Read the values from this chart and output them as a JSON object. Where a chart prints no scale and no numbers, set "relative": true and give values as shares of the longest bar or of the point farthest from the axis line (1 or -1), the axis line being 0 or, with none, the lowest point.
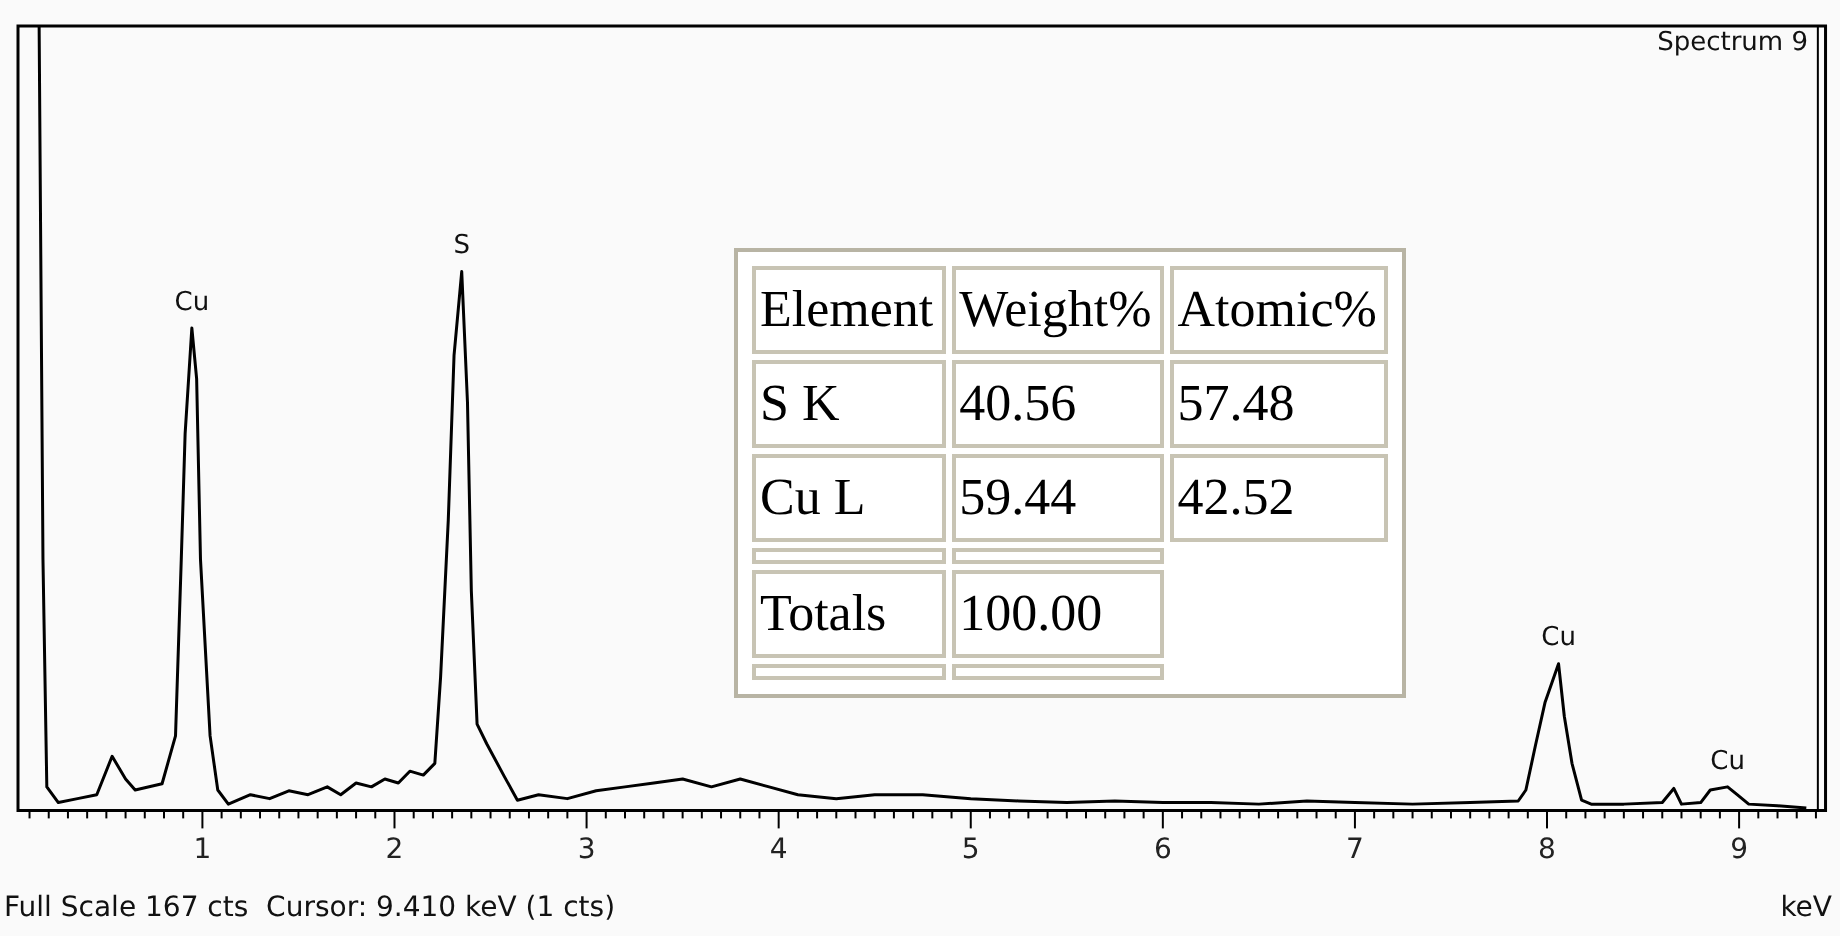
{
  "chart_data": {
    "type": "line",
    "relative": true,
    "xlabel": "keV",
    "xlim": [
      0.04,
      9.45
    ],
    "xticks": [
      {
        "value": 0.1,
        "label": null
      },
      {
        "value": 0.2,
        "label": null
      },
      {
        "value": 0.3,
        "label": null
      },
      {
        "value": 0.4,
        "label": null
      },
      {
        "value": 0.5,
        "label": null
      },
      {
        "value": 0.6,
        "label": null
      },
      {
        "value": 0.7,
        "label": null
      },
      {
        "value": 0.8,
        "label": null
      },
      {
        "value": 0.9,
        "label": null
      },
      1,
      {
        "value": 1.1,
        "label": null
      },
      {
        "value": 1.2,
        "label": null
      },
      {
        "value": 1.3,
        "label": null
      },
      {
        "value": 1.4,
        "label": null
      },
      {
        "value": 1.5,
        "label": null
      },
      {
        "value": 1.6,
        "label": null
      },
      {
        "value": 1.7,
        "label": null
      },
      {
        "value": 1.8,
        "label": null
      },
      {
        "value": 1.9,
        "label": null
      },
      2,
      {
        "value": 2.1,
        "label": null
      },
      {
        "value": 2.2,
        "label": null
      },
      {
        "value": 2.3,
        "label": null
      },
      {
        "value": 2.4,
        "label": null
      },
      {
        "value": 2.5,
        "label": null
      },
      {
        "value": 2.6,
        "label": null
      },
      {
        "value": 2.7,
        "label": null
      },
      {
        "value": 2.8,
        "label": null
      },
      {
        "value": 2.9,
        "label": null
      },
      3,
      {
        "value": 3.1,
        "label": null
      },
      {
        "value": 3.2,
        "label": null
      },
      {
        "value": 3.3,
        "label": null
      },
      {
        "value": 3.4,
        "label": null
      },
      {
        "value": 3.5,
        "label": null
      },
      {
        "value": 3.6,
        "label": null
      },
      {
        "value": 3.7,
        "label": null
      },
      {
        "value": 3.8,
        "label": null
      },
      {
        "value": 3.9,
        "label": null
      },
      4,
      {
        "value": 4.1,
        "label": null
      },
      {
        "value": 4.2,
        "label": null
      },
      {
        "value": 4.3,
        "label": null
      },
      {
        "value": 4.4,
        "label": null
      },
      {
        "value": 4.5,
        "label": null
      },
      {
        "value": 4.6,
        "label": null
      },
      {
        "value": 4.7,
        "label": null
      },
      {
        "value": 4.8,
        "label": null
      },
      {
        "value": 4.9,
        "label": null
      },
      5,
      {
        "value": 5.1,
        "label": null
      },
      {
        "value": 5.2,
        "label": null
      },
      {
        "value": 5.3,
        "label": null
      },
      {
        "value": 5.4,
        "label": null
      },
      {
        "value": 5.5,
        "label": null
      },
      {
        "value": 5.6,
        "label": null
      },
      {
        "value": 5.7,
        "label": null
      },
      {
        "value": 5.8,
        "label": null
      },
      {
        "value": 5.9,
        "label": null
      },
      6,
      {
        "value": 6.1,
        "label": null
      },
      {
        "value": 6.2,
        "label": null
      },
      {
        "value": 6.3,
        "label": null
      },
      {
        "value": 6.4,
        "label": null
      },
      {
        "value": 6.5,
        "label": null
      },
      {
        "value": 6.6,
        "label": null
      },
      {
        "value": 6.7,
        "label": null
      },
      {
        "value": 6.8,
        "label": null
      },
      {
        "value": 6.9,
        "label": null
      },
      7,
      {
        "value": 7.1,
        "label": null
      },
      {
        "value": 7.2,
        "label": null
      },
      {
        "value": 7.3,
        "label": null
      },
      {
        "value": 7.4,
        "label": null
      },
      {
        "value": 7.5,
        "label": null
      },
      {
        "value": 7.6,
        "label": null
      },
      {
        "value": 7.7,
        "label": null
      },
      {
        "value": 7.8,
        "label": null
      },
      {
        "value": 7.9,
        "label": null
      },
      8,
      {
        "value": 8.1,
        "label": null
      },
      {
        "value": 8.2,
        "label": null
      },
      {
        "value": 8.3,
        "label": null
      },
      {
        "value": 8.4,
        "label": null
      },
      {
        "value": 8.5,
        "label": null
      },
      {
        "value": 8.6,
        "label": null
      },
      {
        "value": 8.7,
        "label": null
      },
      {
        "value": 8.8,
        "label": null
      },
      {
        "value": 8.9,
        "label": null
      },
      9,
      {
        "value": 9.1,
        "label": null
      },
      {
        "value": 9.2,
        "label": null
      },
      {
        "value": 9.3,
        "label": null
      },
      {
        "value": 9.4,
        "label": null
      }
    ],
    "x": [
      0.15,
      0.17,
      0.19,
      0.25,
      0.35,
      0.45,
      0.53,
      0.6,
      0.65,
      0.79,
      0.86,
      0.89,
      0.91,
      0.945,
      0.97,
      0.99,
      1.04,
      1.08,
      1.135,
      1.25,
      1.35,
      1.45,
      1.55,
      1.65,
      1.72,
      1.8,
      1.88,
      1.95,
      2.02,
      2.08,
      2.15,
      2.21,
      2.24,
      2.28,
      2.31,
      2.35,
      2.38,
      2.4,
      2.43,
      2.48,
      2.57,
      2.64,
      2.75,
      2.9,
      3.05,
      3.2,
      3.35,
      3.5,
      3.65,
      3.8,
      3.95,
      4.1,
      4.3,
      4.5,
      4.75,
      5.0,
      5.25,
      5.5,
      5.75,
      6.0,
      6.25,
      6.5,
      6.75,
      7.0,
      7.3,
      7.6,
      7.85,
      7.89,
      7.94,
      7.99,
      8.06,
      8.09,
      8.13,
      8.18,
      8.23,
      8.4,
      8.6,
      8.66,
      8.7,
      8.8,
      8.85,
      8.94,
      8.99,
      9.05,
      9.2,
      9.35
    ],
    "values": [
      1,
      0.32,
      0.03,
      0.01,
      0.015,
      0.02,
      0.069,
      0.04,
      0.026,
      0.034,
      0.095,
      0.32,
      0.48,
      0.615,
      0.55,
      0.32,
      0.095,
      0.026,
      0.008,
      0.02,
      0.015,
      0.025,
      0.02,
      0.03,
      0.02,
      0.035,
      0.03,
      0.04,
      0.035,
      0.05,
      0.045,
      0.06,
      0.17,
      0.37,
      0.58,
      0.687,
      0.52,
      0.28,
      0.11,
      0.085,
      0.044,
      0.013,
      0.02,
      0.015,
      0.025,
      0.03,
      0.035,
      0.04,
      0.03,
      0.04,
      0.03,
      0.02,
      0.015,
      0.02,
      0.02,
      0.015,
      0.012,
      0.01,
      0.012,
      0.01,
      0.01,
      0.008,
      0.012,
      0.01,
      0.008,
      0.01,
      0.012,
      0.026,
      0.083,
      0.138,
      0.187,
      0.12,
      0.06,
      0.013,
      0.008,
      0.008,
      0.01,
      0.028,
      0.008,
      0.01,
      0.026,
      0.03,
      0.02,
      0.008,
      0.006,
      0.003
    ],
    "color": "#000000",
    "grid": false,
    "legend": false,
    "marker": "none",
    "ref_lines": [
      {
        "axis": "x",
        "value": 9.41,
        "color": "#000000"
      }
    ],
    "annotations": [
      "Spectrum 9",
      "Full Scale 167 cts  Cursor: 9.410 keV (1 cts)",
      "Element",
      "Weight%",
      "Atomic%",
      "S K",
      "40.56",
      "57.48",
      "Cu L",
      "59.44",
      "42.52",
      "Totals",
      "100.00",
      {
        "text": "Cu",
        "x": 0.945,
        "y": 0.615
      },
      {
        "text": "S",
        "x": 2.35,
        "y": 0.687
      },
      {
        "text": "Cu",
        "x": 8.06,
        "y": 0.187
      },
      {
        "text": "Cu",
        "x": 8.94,
        "y": 0.03
      }
    ]
  }
}
